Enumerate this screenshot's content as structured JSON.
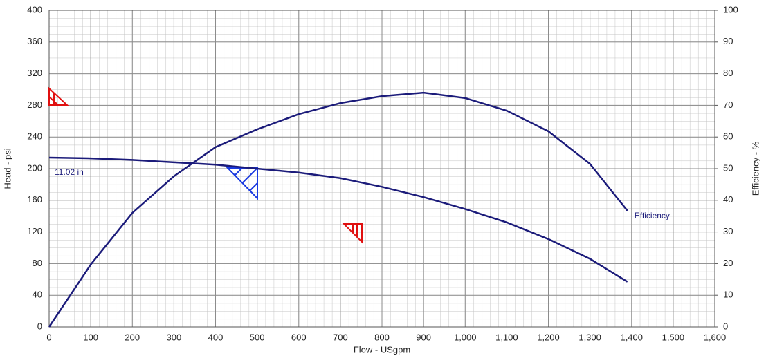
{
  "chart_data": {
    "type": "line",
    "x_label": "Flow - USgpm",
    "y_label": "Head - psi",
    "y2_label": "Efficiency - %",
    "x": [
      0,
      100,
      200,
      300,
      400,
      500,
      600,
      700,
      800,
      900,
      1000,
      1100,
      1200,
      1300,
      1390
    ],
    "series": [
      {
        "name": "11.02 in",
        "color": "#1b1b7a",
        "values": [
          214,
          213,
          211,
          208,
          205,
          200,
          195,
          188,
          177,
          164,
          149,
          132,
          111,
          86,
          57
        ]
      },
      {
        "name": "Efficiency",
        "color": "#1b1b7a",
        "axis": "y2",
        "values": [
          0,
          19.7,
          36,
          47.6,
          56.8,
          62.4,
          67.2,
          70.7,
          72.9,
          74,
          72.3,
          68.3,
          61.8,
          51.5,
          36.7
        ]
      }
    ],
    "xlim": [
      0,
      1600
    ],
    "xticks": [
      0,
      100,
      200,
      300,
      400,
      500,
      600,
      700,
      800,
      900,
      {
        "value": 1000,
        "label": "1,000"
      },
      {
        "value": 1100,
        "label": "1,100"
      },
      {
        "value": 1200,
        "label": "1,200"
      },
      {
        "value": 1300,
        "label": "1,300"
      },
      {
        "value": 1400,
        "label": "1,400"
      },
      {
        "value": 1500,
        "label": "1,500"
      },
      {
        "value": 1600,
        "label": "1,600"
      }
    ],
    "ylim": [
      0,
      400
    ],
    "yticks": [
      0,
      40,
      80,
      120,
      160,
      200,
      240,
      280,
      320,
      360,
      400
    ],
    "y2lim": [
      0,
      100
    ],
    "y2ticks": [
      0,
      10,
      20,
      30,
      40,
      50,
      60,
      70,
      80,
      90,
      100
    ],
    "grid": true
  }
}
